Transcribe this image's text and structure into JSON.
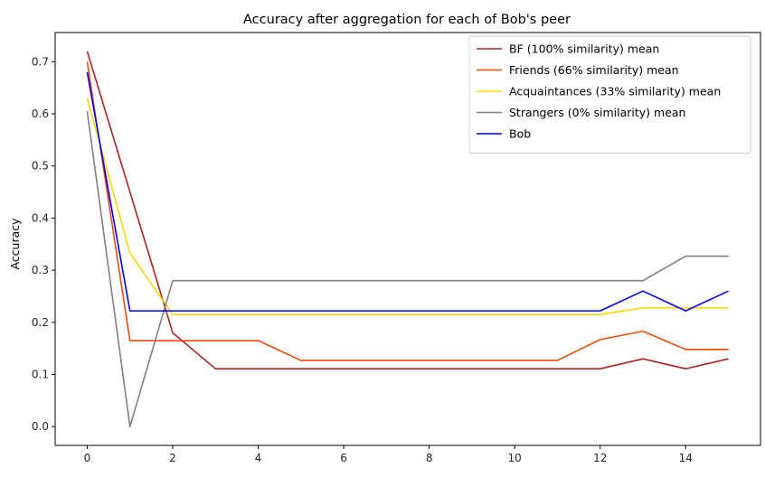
{
  "chart_data": {
    "type": "line",
    "title": "Accuracy after aggregation for each of Bob's peer",
    "xlabel": "",
    "ylabel": "Accuracy",
    "xlim": [
      -0.75,
      15.75
    ],
    "ylim": [
      -0.036,
      0.756
    ],
    "xticks": [
      0,
      2,
      4,
      6,
      8,
      10,
      12,
      14
    ],
    "yticks": [
      0.0,
      0.1,
      0.2,
      0.3,
      0.4,
      0.5,
      0.6,
      0.7
    ],
    "ytick_labels": [
      "0.0",
      "0.1",
      "0.2",
      "0.3",
      "0.4",
      "0.5",
      "0.6",
      "0.7"
    ],
    "xtick_labels": [
      "0",
      "2",
      "4",
      "6",
      "8",
      "10",
      "12",
      "14"
    ],
    "grid": false,
    "legend_position": "top-right",
    "x": [
      0,
      1,
      2,
      3,
      4,
      5,
      6,
      7,
      8,
      9,
      10,
      11,
      12,
      13,
      14,
      15
    ],
    "series": [
      {
        "name": "BF (100% similarity) mean",
        "color": "#b22222",
        "values": [
          0.72,
          0.45,
          0.18,
          0.111,
          0.111,
          0.111,
          0.111,
          0.111,
          0.111,
          0.111,
          0.111,
          0.111,
          0.111,
          0.13,
          0.111,
          0.13
        ]
      },
      {
        "name": "Friends (66% similarity) mean",
        "color": "#f04a0a",
        "values": [
          0.7,
          0.165,
          0.165,
          0.165,
          0.165,
          0.127,
          0.127,
          0.127,
          0.127,
          0.127,
          0.127,
          0.127,
          0.167,
          0.183,
          0.148,
          0.148
        ]
      },
      {
        "name": "Acquaintances (33% similarity) mean",
        "color": "#ffd700",
        "values": [
          0.63,
          0.333,
          0.215,
          0.215,
          0.215,
          0.215,
          0.215,
          0.215,
          0.215,
          0.215,
          0.215,
          0.215,
          0.215,
          0.228,
          0.228,
          0.228
        ]
      },
      {
        "name": "Strangers (0% similarity) mean",
        "color": "#808080",
        "values": [
          0.605,
          0.0,
          0.28,
          0.28,
          0.28,
          0.28,
          0.28,
          0.28,
          0.28,
          0.28,
          0.28,
          0.28,
          0.28,
          0.28,
          0.327,
          0.327
        ]
      },
      {
        "name": "Bob",
        "color": "#0000ff",
        "values": [
          0.68,
          0.222,
          0.222,
          0.222,
          0.222,
          0.222,
          0.222,
          0.222,
          0.222,
          0.222,
          0.222,
          0.222,
          0.222,
          0.26,
          0.222,
          0.26
        ]
      }
    ]
  }
}
